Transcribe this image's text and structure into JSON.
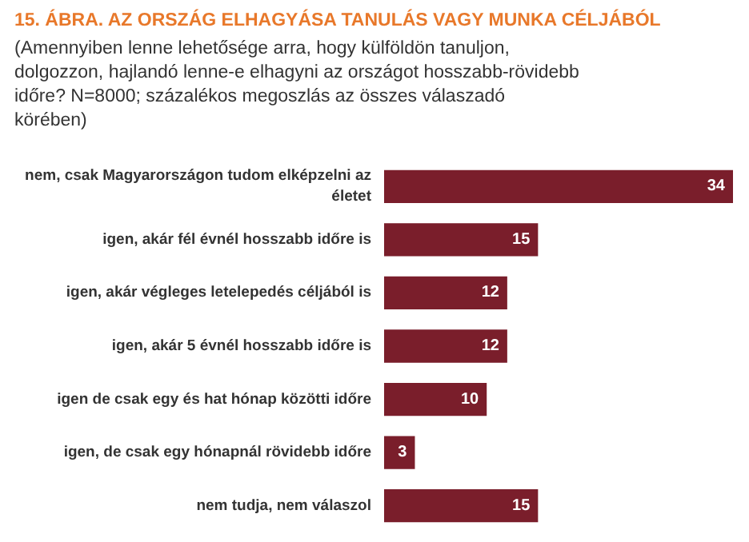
{
  "chart_data": {
    "type": "bar",
    "orientation": "horizontal",
    "title": "15. ÁBRA. AZ ORSZÁG ELHAGYÁSA TANULÁS VAGY MUNKA CÉLJÁBÓL",
    "subtitle": "(Amennyiben lenne lehetősége arra, hogy külföldön tanuljon, dolgozzon, hajlandó lenne-e elhagyni az országot hosszabb-rövidebb időre? N=8000; százalékos megoszlás az összes válaszadó körében)",
    "categories": [
      "nem, csak Magyarországon tudom elképzelni az életet",
      "igen, akár fél évnél hosszabb időre is",
      "igen, akár végleges letelepedés céljából is",
      "igen, akár 5 évnél hosszabb időre is",
      "igen de csak egy és hat hónap közötti időre",
      "igen, de csak egy hónapnál rövidebb időre",
      "nem tudja, nem válaszol"
    ],
    "values": [
      34,
      15,
      12,
      12,
      10,
      3,
      15
    ],
    "color": "#7a1e2b",
    "data_labels": true
  }
}
